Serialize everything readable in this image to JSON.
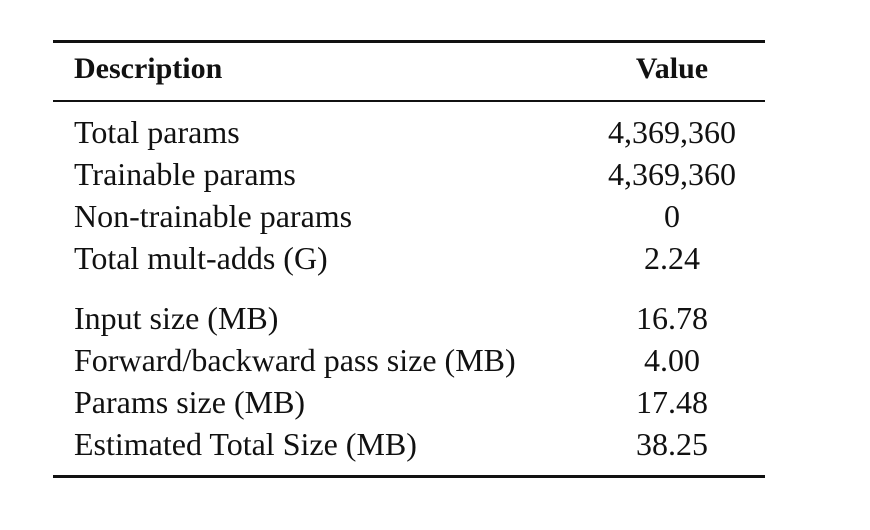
{
  "table": {
    "header": {
      "description": "Description",
      "value": "Value"
    },
    "groups": [
      {
        "rows": [
          {
            "label": "Total params",
            "value": "4,369,360"
          },
          {
            "label": "Trainable params",
            "value": "4,369,360"
          },
          {
            "label": "Non-trainable params",
            "value": "0"
          },
          {
            "label": "Total mult-adds (G)",
            "value": "2.24"
          }
        ]
      },
      {
        "rows": [
          {
            "label": "Input size (MB)",
            "value": "16.78"
          },
          {
            "label": "Forward/backward pass size (MB)",
            "value": "4.00"
          },
          {
            "label": "Params size (MB)",
            "value": "17.48"
          },
          {
            "label": "Estimated Total Size (MB)",
            "value": "38.25"
          }
        ]
      }
    ]
  }
}
